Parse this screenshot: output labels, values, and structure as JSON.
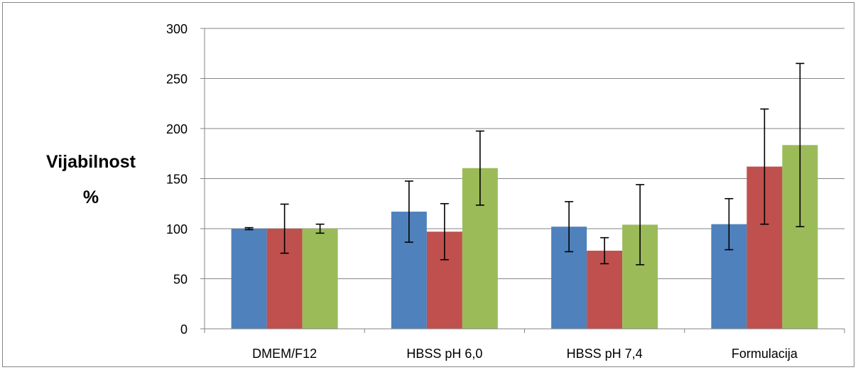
{
  "chart_data": {
    "type": "bar",
    "title": "",
    "xlabel": "",
    "ylabel_lines": [
      "Vijabilnost",
      "%"
    ],
    "categories": [
      "DMEM/F12",
      "HBSS pH 6,0",
      "HBSS pH 7,4",
      "Formulacija"
    ],
    "ylim": [
      0,
      300
    ],
    "yticks": [
      0,
      50,
      100,
      150,
      200,
      250,
      300
    ],
    "grid": true,
    "legend": "none",
    "series": [
      {
        "color": "#4f81bd",
        "values": [
          100,
          117,
          102,
          104.5
        ],
        "errors": [
          1,
          30.5,
          25,
          25.5
        ]
      },
      {
        "color": "#c0504d",
        "values": [
          100,
          97,
          78,
          162
        ],
        "errors": [
          24.5,
          28,
          13,
          57.5
        ]
      },
      {
        "color": "#9bbb59",
        "values": [
          100,
          160.5,
          104,
          183.5
        ],
        "errors": [
          4.5,
          37,
          40,
          81.5
        ]
      }
    ]
  }
}
